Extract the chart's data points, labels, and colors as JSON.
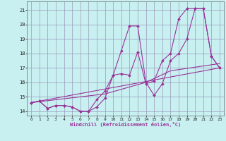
{
  "xlabel": "Windchill (Refroidissement éolien,°C)",
  "background_color": "#c8f0f0",
  "grid_color": "#9999bb",
  "line_color": "#993399",
  "xlim": [
    -0.5,
    23.5
  ],
  "ylim": [
    13.7,
    21.6
  ],
  "yticks": [
    14,
    15,
    16,
    17,
    18,
    19,
    20,
    21
  ],
  "xticks": [
    0,
    1,
    2,
    3,
    4,
    5,
    6,
    7,
    8,
    9,
    10,
    11,
    12,
    13,
    14,
    15,
    16,
    17,
    18,
    19,
    20,
    21,
    22,
    23
  ],
  "series": [
    {
      "x": [
        0,
        1,
        2,
        3,
        4,
        5,
        6,
        7,
        8,
        9,
        10,
        11,
        12,
        13,
        14,
        15,
        16,
        17,
        18,
        19,
        20,
        21,
        22,
        23
      ],
      "y": [
        14.6,
        14.7,
        14.2,
        14.4,
        14.4,
        14.3,
        14.0,
        14.0,
        14.3,
        14.9,
        16.5,
        18.2,
        19.9,
        19.9,
        16.0,
        15.1,
        15.9,
        17.5,
        18.0,
        19.0,
        21.1,
        21.1,
        17.8,
        17.0
      ],
      "has_markers": true
    },
    {
      "x": [
        0,
        1,
        2,
        3,
        4,
        5,
        6,
        7,
        8,
        9,
        10,
        11,
        12,
        13,
        14,
        15,
        16,
        17,
        18,
        19,
        20,
        21,
        22,
        23
      ],
      "y": [
        14.6,
        14.7,
        14.2,
        14.4,
        14.4,
        14.3,
        14.0,
        14.0,
        14.8,
        15.4,
        16.5,
        16.6,
        16.5,
        18.1,
        15.9,
        16.1,
        17.5,
        18.0,
        20.4,
        21.1,
        21.1,
        21.1,
        17.8,
        17.0
      ],
      "has_markers": true
    },
    {
      "x": [
        0,
        23
      ],
      "y": [
        14.6,
        17.0
      ],
      "has_markers": false
    },
    {
      "x": [
        0,
        9,
        14,
        17,
        23
      ],
      "y": [
        14.6,
        15.2,
        16.0,
        16.8,
        17.3
      ],
      "has_markers": false
    }
  ]
}
